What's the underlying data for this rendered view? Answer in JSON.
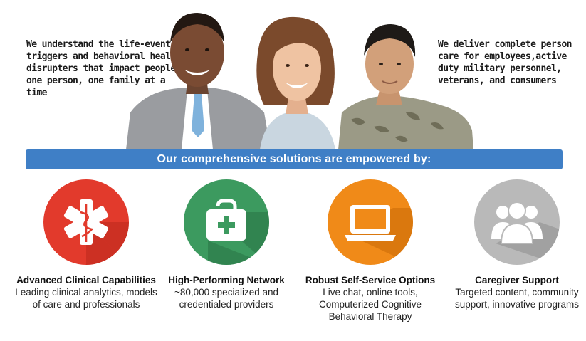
{
  "hero": {
    "left_text": "We understand the life-event triggers and behavioral health disrupters that impact people; one person, one family at a time",
    "right_text": "We deliver complete person care for employees,active duty military personnel, veterans, and consumers"
  },
  "banner": {
    "text": "Our comprehensive solutions are empowered by:"
  },
  "features": [
    {
      "title": "Advanced Clinical Capabilities",
      "description": "Leading clinical analytics, models of care and professionals",
      "icon": "medical-star-icon",
      "color": "#e23a2c"
    },
    {
      "title": "High-Performing Network",
      "description": "~80,000 specialized and credentialed providers",
      "icon": "first-aid-kit-icon",
      "color": "#3c9a5f"
    },
    {
      "title": "Robust Self-Service Options",
      "description": "Live chat, online tools, Computerized Cognitive Behavioral Therapy",
      "icon": "laptop-icon",
      "color": "#f08a18"
    },
    {
      "title": "Caregiver Support",
      "description": "Targeted content, community support, innovative programs",
      "icon": "people-group-icon",
      "color": "#b9b9b9"
    }
  ],
  "colors": {
    "banner": "#3f7fc6"
  }
}
